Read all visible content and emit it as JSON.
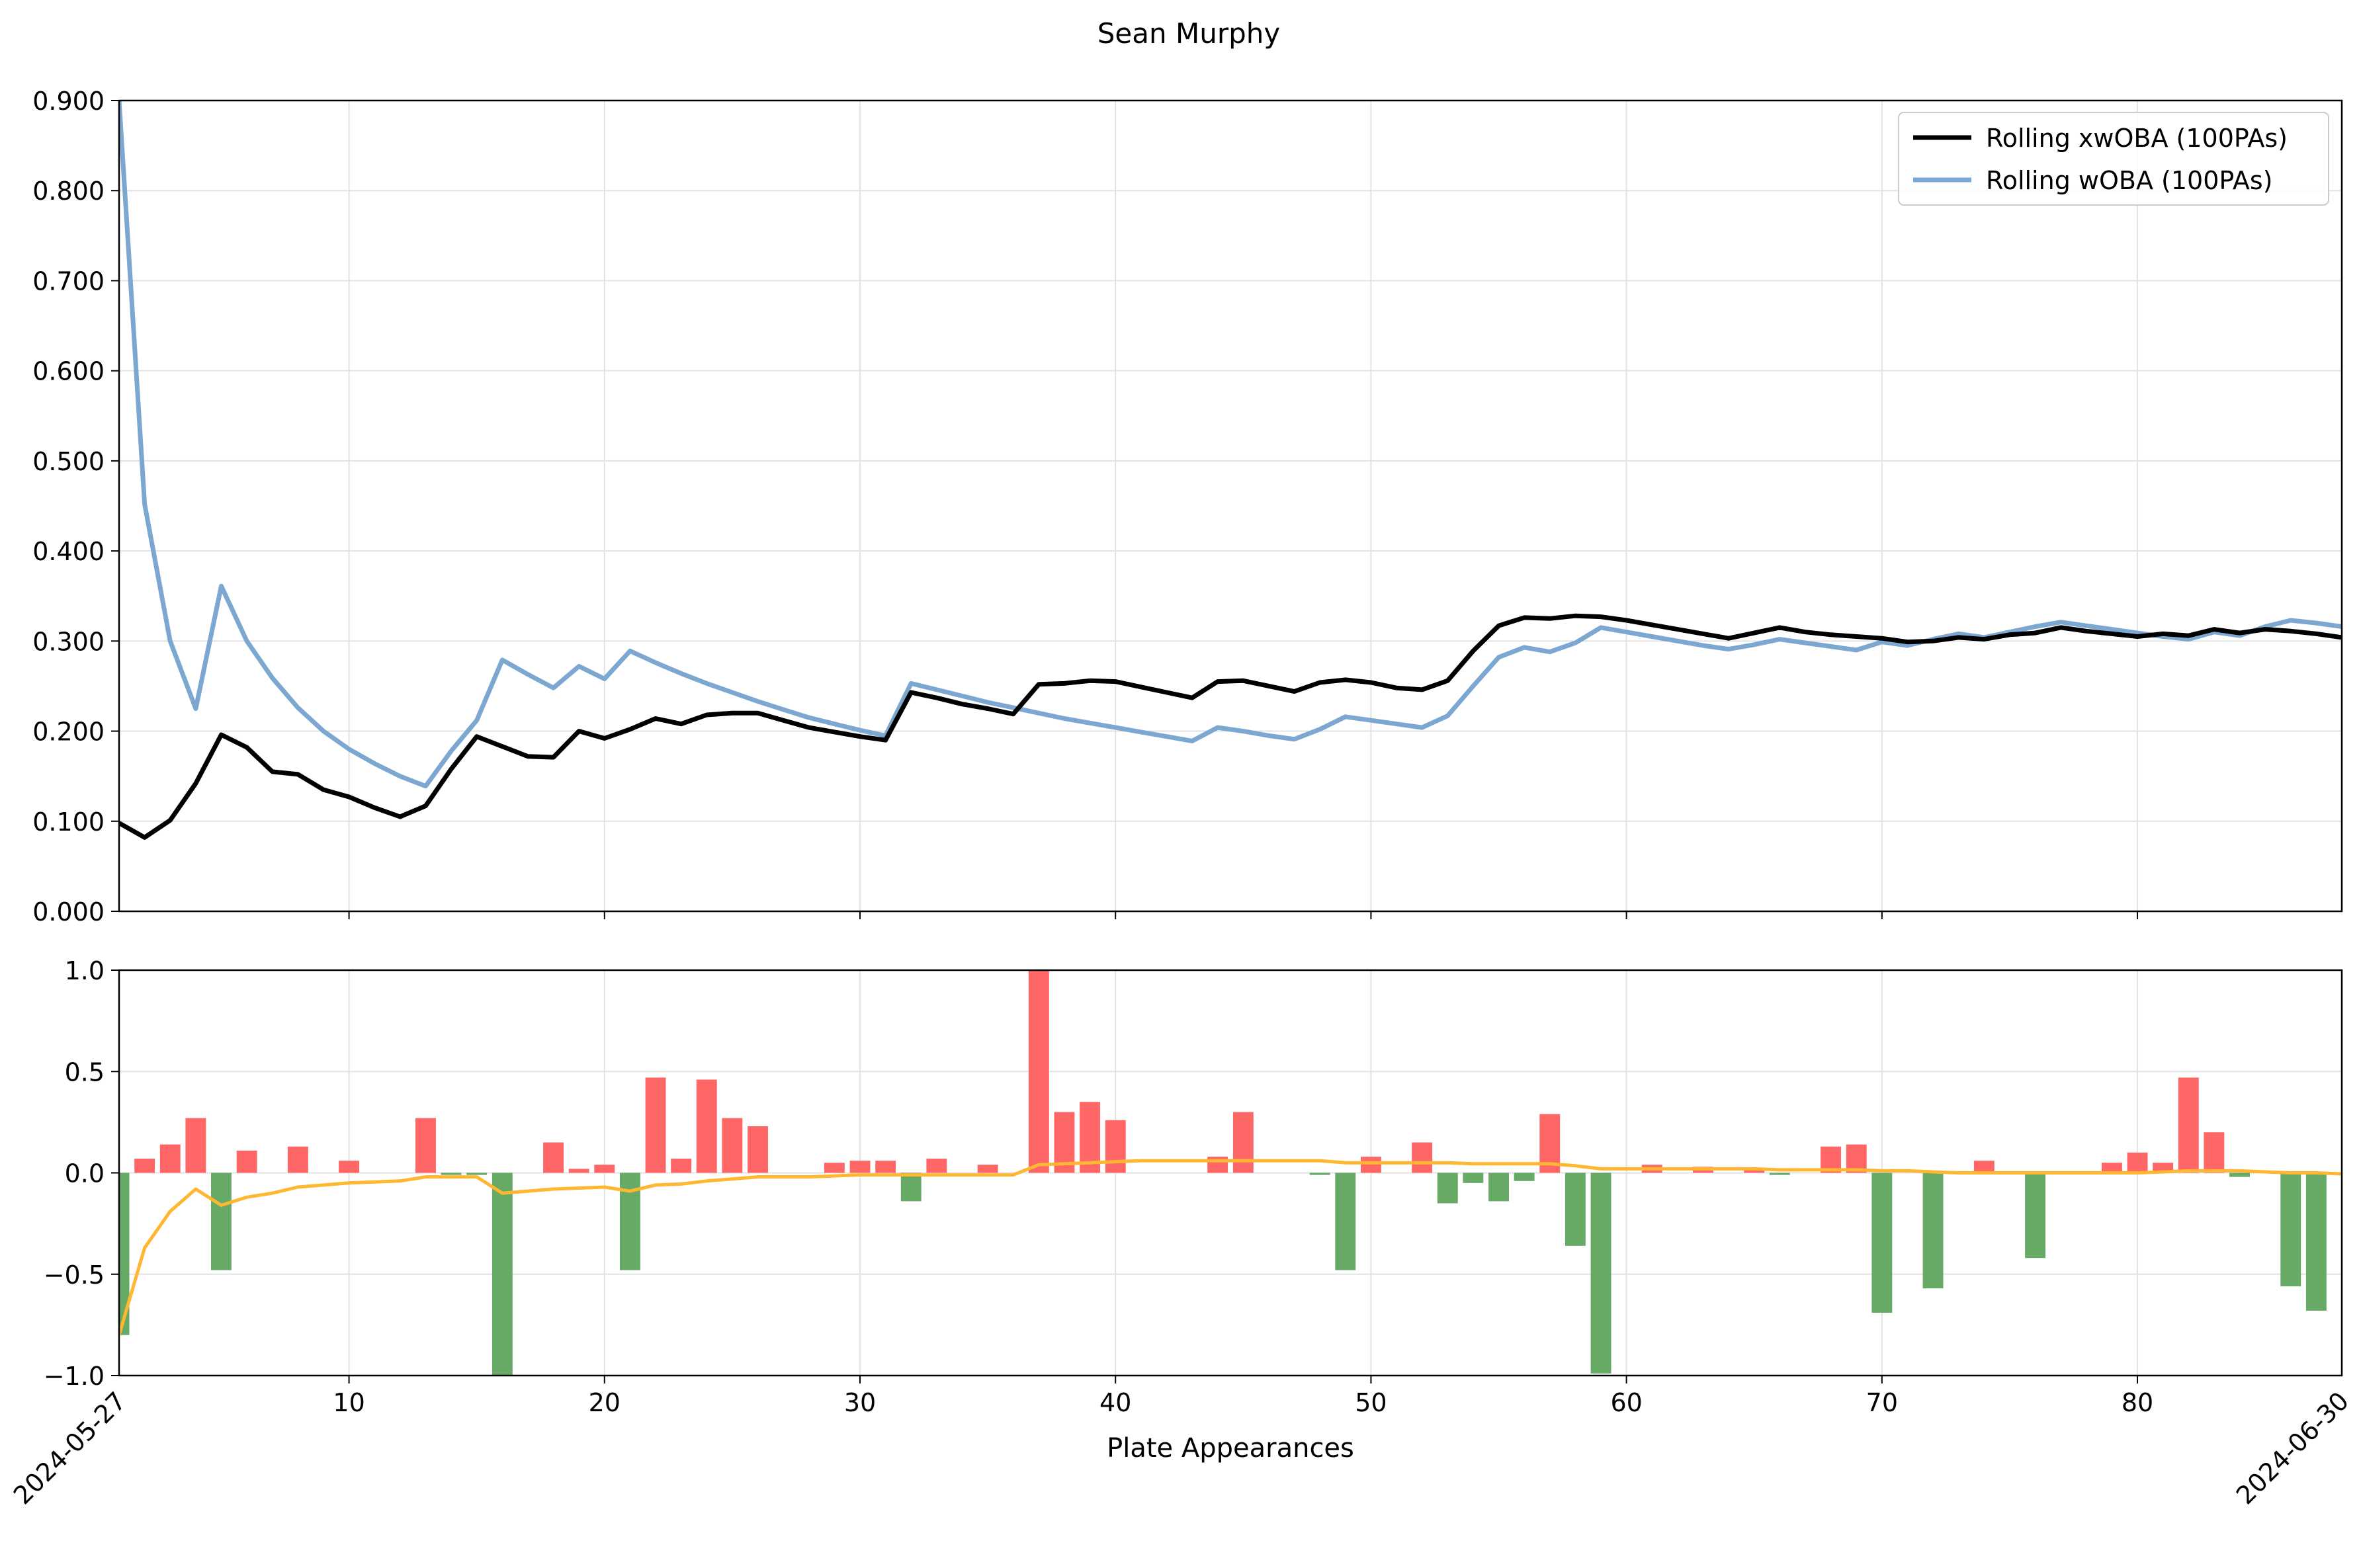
{
  "chart_data": [
    {
      "type": "line",
      "title": "Sean Murphy",
      "xlabel": "",
      "ylabel": "",
      "xlim": [
        1,
        88
      ],
      "ylim": [
        0.0,
        0.9
      ],
      "yticks": [
        "0.000",
        "0.100",
        "0.200",
        "0.300",
        "0.400",
        "0.500",
        "0.600",
        "0.700",
        "0.800",
        "0.900"
      ],
      "grid": true,
      "legend": "top-right",
      "x": [
        1,
        2,
        3,
        4,
        5,
        6,
        7,
        8,
        9,
        10,
        11,
        12,
        13,
        14,
        15,
        16,
        17,
        18,
        19,
        20,
        21,
        22,
        23,
        24,
        25,
        26,
        27,
        28,
        29,
        30,
        31,
        32,
        33,
        34,
        35,
        36,
        37,
        38,
        39,
        40,
        41,
        42,
        43,
        44,
        45,
        46,
        47,
        48,
        49,
        50,
        51,
        52,
        53,
        54,
        55,
        56,
        57,
        58,
        59,
        60,
        61,
        62,
        63,
        64,
        65,
        66,
        67,
        68,
        69,
        70,
        71,
        72,
        73,
        74,
        75,
        76,
        77,
        78,
        79,
        80,
        81,
        82,
        83,
        84,
        85,
        86,
        87,
        88
      ],
      "series": [
        {
          "name": "Rolling xwOBA (100PAs)",
          "color": "#000000",
          "values": [
            0.098,
            0.082,
            0.101,
            0.142,
            0.196,
            0.182,
            0.155,
            0.152,
            0.135,
            0.127,
            0.115,
            0.105,
            0.117,
            0.158,
            0.194,
            0.183,
            0.172,
            0.171,
            0.2,
            0.192,
            0.202,
            0.214,
            0.208,
            0.218,
            0.22,
            0.22,
            0.212,
            0.204,
            0.199,
            0.194,
            0.19,
            0.243,
            0.237,
            0.23,
            0.225,
            0.219,
            0.252,
            0.253,
            0.256,
            0.255,
            0.249,
            0.243,
            0.237,
            0.255,
            0.256,
            0.25,
            0.244,
            0.254,
            0.257,
            0.254,
            0.248,
            0.246,
            0.256,
            0.289,
            0.317,
            0.326,
            0.325,
            0.328,
            0.327,
            0.323,
            0.318,
            0.313,
            0.308,
            0.303,
            0.309,
            0.315,
            0.31,
            0.307,
            0.305,
            0.303,
            0.299,
            0.3,
            0.304,
            0.302,
            0.307,
            0.309,
            0.315,
            0.311,
            0.308,
            0.305,
            0.308,
            0.306,
            0.313,
            0.309,
            0.313,
            0.311,
            0.308,
            0.304
          ]
        },
        {
          "name": "Rolling wOBA (100PAs)",
          "color": "#7BA7D1",
          "values": [
            0.9,
            0.452,
            0.3,
            0.225,
            0.361,
            0.3,
            0.259,
            0.226,
            0.2,
            0.18,
            0.164,
            0.15,
            0.139,
            0.178,
            0.212,
            0.279,
            0.263,
            0.248,
            0.272,
            0.258,
            0.289,
            0.276,
            0.264,
            0.253,
            0.243,
            0.233,
            0.224,
            0.215,
            0.208,
            0.201,
            0.195,
            0.253,
            0.246,
            0.239,
            0.232,
            0.226,
            0.22,
            0.214,
            0.209,
            0.204,
            0.199,
            0.194,
            0.189,
            0.204,
            0.2,
            0.195,
            0.191,
            0.202,
            0.216,
            0.212,
            0.208,
            0.204,
            0.217,
            0.25,
            0.282,
            0.293,
            0.288,
            0.298,
            0.315,
            0.31,
            0.305,
            0.3,
            0.295,
            0.291,
            0.296,
            0.302,
            0.298,
            0.294,
            0.29,
            0.299,
            0.295,
            0.302,
            0.308,
            0.304,
            0.31,
            0.316,
            0.321,
            0.317,
            0.313,
            0.309,
            0.305,
            0.302,
            0.31,
            0.306,
            0.316,
            0.323,
            0.32,
            0.316
          ]
        }
      ]
    },
    {
      "type": "bar",
      "xlabel": "Plate Appearances",
      "ylabel": "",
      "xlim": [
        1,
        88
      ],
      "ylim": [
        -1.0,
        1.0
      ],
      "yticks": [
        "−1.0",
        "−0.5",
        "0.0",
        "0.5",
        "1.0"
      ],
      "xticks": [
        10,
        20,
        30,
        40,
        50,
        60,
        70,
        80
      ],
      "grid": true,
      "date_labels": [
        {
          "x": 1,
          "label": "2024-05-27"
        },
        {
          "x": 88,
          "label": "2024-06-30"
        }
      ],
      "positive_color": "#FF6666",
      "negative_color": "#66AA66",
      "trend_color": "#FFB732",
      "x": [
        1,
        2,
        3,
        4,
        5,
        6,
        7,
        8,
        9,
        10,
        11,
        12,
        13,
        14,
        15,
        16,
        17,
        18,
        19,
        20,
        21,
        22,
        23,
        24,
        25,
        26,
        27,
        28,
        29,
        30,
        31,
        32,
        33,
        34,
        35,
        36,
        37,
        38,
        39,
        40,
        41,
        42,
        43,
        44,
        45,
        46,
        47,
        48,
        49,
        50,
        51,
        52,
        53,
        54,
        55,
        56,
        57,
        58,
        59,
        60,
        61,
        62,
        63,
        64,
        65,
        66,
        67,
        68,
        69,
        70,
        71,
        72,
        73,
        74,
        75,
        76,
        77,
        78,
        79,
        80,
        81,
        82,
        83,
        84,
        85,
        86,
        87,
        88
      ],
      "bar_values": [
        -0.8,
        0.07,
        0.14,
        0.27,
        -0.48,
        0.11,
        0,
        0.13,
        0,
        0.06,
        0,
        0,
        0.27,
        -0.01,
        -0.01,
        -1.0,
        0,
        0.15,
        0.02,
        0.04,
        -0.48,
        0.47,
        0.07,
        0.46,
        0.27,
        0.23,
        0,
        0,
        0.05,
        0.06,
        0.06,
        -0.14,
        0.07,
        0,
        0.04,
        0,
        1.0,
        0.3,
        0.35,
        0.26,
        0,
        0,
        0,
        0.08,
        0.3,
        0,
        0,
        -0.01,
        -0.48,
        0.08,
        0,
        0.15,
        -0.15,
        -0.05,
        -0.14,
        -0.04,
        0.29,
        -0.36,
        -0.99,
        0,
        0.04,
        0,
        0.03,
        0,
        0.02,
        -0.01,
        0,
        0.13,
        0.14,
        -0.69,
        0,
        -0.57,
        0,
        0.06,
        0,
        -0.42,
        0,
        0,
        0.05,
        0.1,
        0.05,
        0.47,
        0.2,
        -0.02,
        0,
        -0.56,
        -0.68,
        0
      ],
      "trend_values": [
        -0.8,
        -0.37,
        -0.19,
        -0.08,
        -0.16,
        -0.12,
        -0.1,
        -0.07,
        -0.06,
        -0.05,
        -0.045,
        -0.04,
        -0.02,
        -0.02,
        -0.02,
        -0.1,
        -0.09,
        -0.08,
        -0.075,
        -0.07,
        -0.09,
        -0.06,
        -0.055,
        -0.04,
        -0.03,
        -0.02,
        -0.02,
        -0.02,
        -0.015,
        -0.01,
        -0.01,
        -0.01,
        -0.01,
        -0.01,
        -0.01,
        -0.01,
        0.04,
        0.045,
        0.05,
        0.055,
        0.06,
        0.06,
        0.06,
        0.06,
        0.06,
        0.06,
        0.06,
        0.06,
        0.05,
        0.05,
        0.05,
        0.05,
        0.05,
        0.045,
        0.045,
        0.045,
        0.045,
        0.035,
        0.02,
        0.02,
        0.02,
        0.02,
        0.02,
        0.02,
        0.02,
        0.015,
        0.015,
        0.015,
        0.015,
        0.01,
        0.01,
        0.005,
        0,
        0,
        0,
        0,
        0,
        0,
        0,
        0,
        0.005,
        0.01,
        0.01,
        0.01,
        0.005,
        0,
        0,
        -0.005
      ]
    }
  ]
}
